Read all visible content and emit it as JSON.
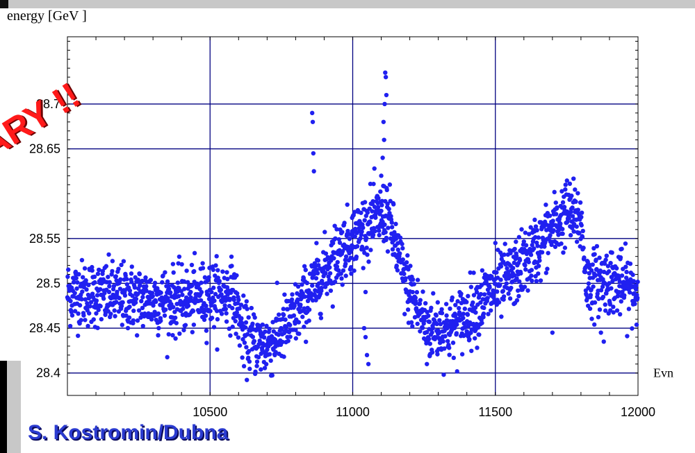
{
  "chart_data": {
    "type": "scatter",
    "title": "",
    "xlabel": "Evn",
    "ylabel": "energy [GeV ]",
    "xlim": [
      10000,
      12000
    ],
    "ylim": [
      28.375,
      28.775
    ],
    "xticks": [
      10500,
      11000,
      11500,
      12000
    ],
    "yticks": [
      28.4,
      28.45,
      28.5,
      28.55,
      28.65,
      28.7
    ],
    "ytick_labels": [
      "28.4",
      "28.45",
      "28.5",
      "28.55",
      "28.65",
      "28.7"
    ],
    "xtick_labels": [
      "10500",
      "11000",
      "11500",
      "12000"
    ],
    "grid": true,
    "point_color": "#2020f0",
    "grid_color": "#000080",
    "series": [
      {
        "trend_x": [
          10000,
          10100,
          10200,
          10300,
          10400,
          10500,
          10580,
          10620,
          10700,
          10780,
          10850,
          10950,
          11050,
          11120,
          11180,
          11260,
          11350,
          11450,
          11550,
          11650,
          11750,
          11800,
          11820,
          11900,
          12000
        ],
        "trend_y": [
          28.49,
          28.488,
          28.485,
          28.482,
          28.48,
          28.487,
          28.49,
          28.44,
          28.43,
          28.455,
          28.49,
          28.535,
          28.565,
          28.58,
          28.505,
          28.45,
          28.45,
          28.48,
          28.505,
          28.54,
          28.58,
          28.57,
          28.5,
          28.505,
          28.49
        ],
        "spread": 0.028,
        "n_points": 2000,
        "outliers": [
          [
            10858,
            28.69
          ],
          [
            10860,
            28.68
          ],
          [
            10862,
            28.645
          ],
          [
            10864,
            28.625
          ],
          [
            11100,
            28.62
          ],
          [
            11105,
            28.64
          ],
          [
            11110,
            28.66
          ],
          [
            11112,
            28.7
          ],
          [
            11114,
            28.735
          ],
          [
            11116,
            28.73
          ],
          [
            11118,
            28.71
          ],
          [
            11108,
            28.68
          ],
          [
            11040,
            28.45
          ],
          [
            11045,
            28.44
          ],
          [
            11050,
            28.42
          ],
          [
            11055,
            28.41
          ],
          [
            11260,
            28.41
          ],
          [
            11270,
            28.42
          ],
          [
            11500,
            28.545
          ],
          [
            11700,
            28.445
          ],
          [
            11880,
            28.435
          ],
          [
            11870,
            28.445
          ]
        ]
      }
    ]
  },
  "overlay": {
    "stamp_text": "NARY !!",
    "author_text": "S. Kostromin/Dubna"
  }
}
